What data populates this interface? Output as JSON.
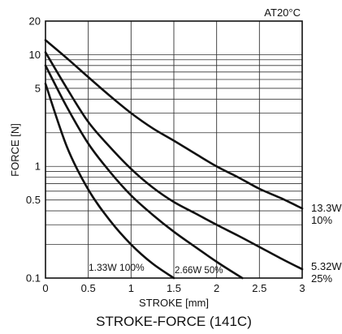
{
  "chart_data": {
    "type": "line",
    "title": "STROKE-FORCE (141C)",
    "condition_label": "AT20°C",
    "xlabel": "STROKE [mm]",
    "ylabel": "FORCE [N]",
    "x_scale": "linear",
    "y_scale": "log",
    "xlim": [
      0,
      3
    ],
    "ylim": [
      0.1,
      20
    ],
    "x_ticks": [
      {
        "value": 0,
        "label": "0"
      },
      {
        "value": 0.5,
        "label": "0.5"
      },
      {
        "value": 1,
        "label": "1"
      },
      {
        "value": 1.5,
        "label": "1.5"
      },
      {
        "value": 2,
        "label": "2"
      },
      {
        "value": 2.5,
        "label": "2.5"
      },
      {
        "value": 3,
        "label": "3"
      }
    ],
    "y_ticks": [
      {
        "value": 0.1,
        "label": "0.1"
      },
      {
        "value": 0.5,
        "label": "0.5"
      },
      {
        "value": 1,
        "label": "1"
      },
      {
        "value": 5,
        "label": "5"
      },
      {
        "value": 10,
        "label": "10"
      },
      {
        "value": 20,
        "label": "20"
      }
    ],
    "y_gridlines": [
      0.2,
      0.3,
      0.4,
      0.5,
      0.6,
      0.7,
      0.8,
      0.9,
      1,
      2,
      3,
      4,
      5,
      6,
      7,
      8,
      9,
      10
    ],
    "grid": true,
    "series": [
      {
        "name": "13.3W 10%",
        "label_lines": [
          "13.3W",
          "10%"
        ],
        "x": [
          0,
          0.25,
          0.5,
          0.75,
          1.0,
          1.25,
          1.5,
          1.75,
          2.0,
          2.25,
          2.5,
          2.75,
          3.0
        ],
        "y": [
          13.5,
          9.3,
          6.3,
          4.3,
          3.0,
          2.2,
          1.7,
          1.3,
          1.0,
          0.8,
          0.63,
          0.52,
          0.42
        ]
      },
      {
        "name": "5.32W 25%",
        "label_lines": [
          "5.32W",
          "25%"
        ],
        "x": [
          0,
          0.25,
          0.5,
          0.75,
          1.0,
          1.25,
          1.5,
          1.75,
          2.0,
          2.25,
          2.5,
          2.75,
          3.0
        ],
        "y": [
          10.5,
          5.0,
          2.5,
          1.5,
          0.95,
          0.65,
          0.48,
          0.38,
          0.3,
          0.24,
          0.19,
          0.15,
          0.12
        ]
      },
      {
        "name": "2.66W 50%",
        "label": "2.66W 50%",
        "x": [
          0,
          0.25,
          0.5,
          0.75,
          1.0,
          1.25,
          1.5,
          1.75,
          2.0,
          2.15,
          2.3
        ],
        "y": [
          8.0,
          3.4,
          1.6,
          0.9,
          0.55,
          0.37,
          0.26,
          0.19,
          0.14,
          0.118,
          0.1
        ]
      },
      {
        "name": "1.33W 100%",
        "label": "1.33W 100%",
        "x": [
          0,
          0.25,
          0.5,
          0.75,
          1.0,
          1.25,
          1.5
        ],
        "y": [
          5.5,
          1.5,
          0.62,
          0.33,
          0.2,
          0.135,
          0.1
        ]
      }
    ]
  }
}
